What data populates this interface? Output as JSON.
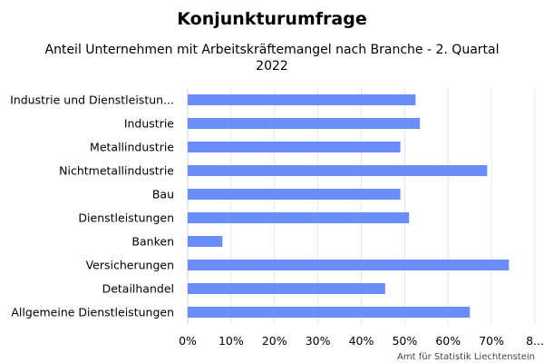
{
  "chart_data": {
    "type": "bar",
    "orientation": "horizontal",
    "title": "Konjunkturumfrage",
    "subtitle_lines": [
      "Anteil Unternehmen mit Arbeitskräftemangel nach Branche - 2. Quartal",
      "2022"
    ],
    "categories": [
      "Industrie und Dienstleistun...",
      "Industrie",
      "Metallindustrie",
      "Nichtmetallindustrie",
      "Bau",
      "Dienstleistungen",
      "Banken",
      "Versicherungen",
      "Detailhandel",
      "Allgemeine Dienstleistungen"
    ],
    "values": [
      52.5,
      53.5,
      49,
      69,
      49,
      51,
      8,
      74,
      45.5,
      65
    ],
    "xlim": [
      0,
      80
    ],
    "x_tick_labels": [
      "0%",
      "10%",
      "20%",
      "30%",
      "40%",
      "50%",
      "60%",
      "70%",
      "8..."
    ],
    "bar_color": "#6b8dfa",
    "grid": true,
    "credit": "Amt für Statistik Liechtenstein"
  }
}
